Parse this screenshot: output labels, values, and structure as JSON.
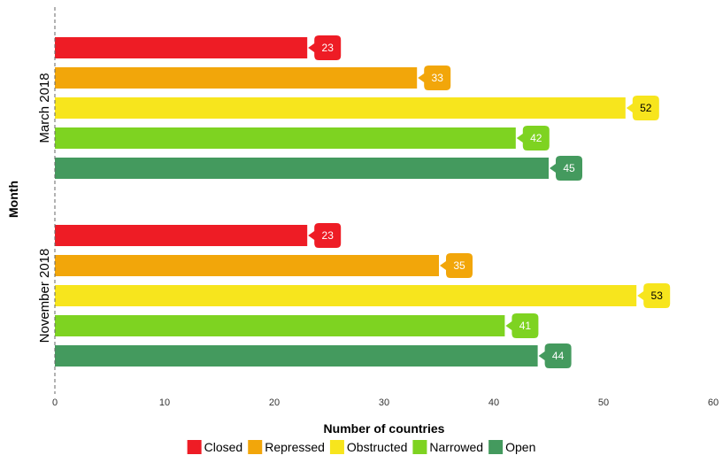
{
  "chart_data": {
    "type": "bar",
    "orientation": "horizontal",
    "xlabel": "Number of countries",
    "ylabel": "Month",
    "xlim": [
      0,
      60
    ],
    "xticks": [
      0,
      10,
      20,
      30,
      40,
      50,
      60
    ],
    "grid": false,
    "legend_position": "bottom",
    "categories": [
      "March 2018",
      "November 2018"
    ],
    "series": [
      {
        "name": "Closed",
        "color": "#ee1c25",
        "values": [
          23,
          23
        ]
      },
      {
        "name": "Repressed",
        "color": "#f2a60a",
        "values": [
          33,
          35
        ]
      },
      {
        "name": "Obstructed",
        "color": "#f7e51d",
        "values": [
          52,
          53
        ]
      },
      {
        "name": "Narrowed",
        "color": "#7ed321",
        "values": [
          42,
          41
        ]
      },
      {
        "name": "Open",
        "color": "#449a5e",
        "values": [
          45,
          44
        ]
      }
    ],
    "data_labels": true
  }
}
